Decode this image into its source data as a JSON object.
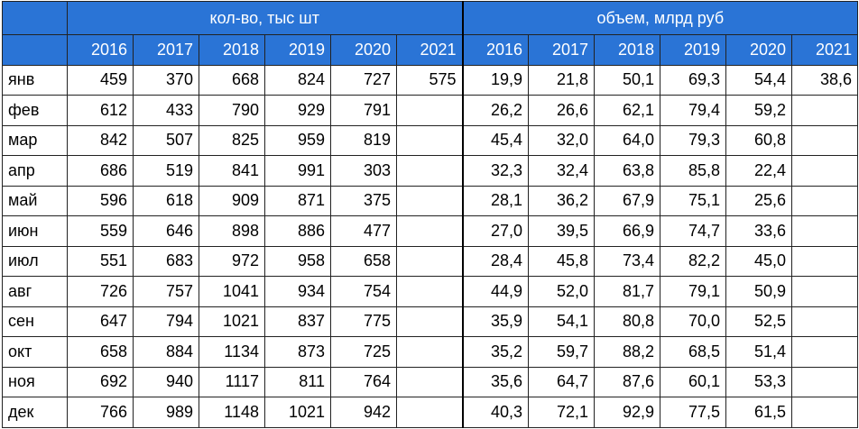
{
  "table": {
    "groups": [
      "кол-во, тыс шт",
      "объем, млрд руб"
    ],
    "columns": [
      "2016",
      "2017",
      "2018",
      "2019",
      "2020",
      "2021",
      "2016",
      "2017",
      "2018",
      "2019",
      "2020",
      "2021"
    ],
    "rows": [
      {
        "month": "янв",
        "values": [
          459,
          370,
          668,
          824,
          727,
          575,
          "19,9",
          "21,8",
          "50,1",
          "69,3",
          "54,4",
          "38,6"
        ]
      },
      {
        "month": "фев",
        "values": [
          612,
          433,
          790,
          929,
          791,
          null,
          "26,2",
          "26,6",
          "62,1",
          "79,4",
          "59,2",
          null
        ]
      },
      {
        "month": "мар",
        "values": [
          842,
          507,
          825,
          959,
          819,
          null,
          "45,4",
          "32,0",
          "64,0",
          "79,3",
          "60,8",
          null
        ]
      },
      {
        "month": "апр",
        "values": [
          686,
          519,
          841,
          991,
          303,
          null,
          "32,3",
          "32,4",
          "63,8",
          "85,8",
          "22,4",
          null
        ]
      },
      {
        "month": "май",
        "values": [
          596,
          618,
          909,
          871,
          375,
          null,
          "28,1",
          "36,2",
          "67,9",
          "75,1",
          "25,6",
          null
        ]
      },
      {
        "month": "июн",
        "values": [
          559,
          646,
          898,
          886,
          477,
          null,
          "27,0",
          "39,5",
          "66,9",
          "74,7",
          "33,6",
          null
        ]
      },
      {
        "month": "июл",
        "values": [
          551,
          683,
          972,
          958,
          658,
          null,
          "28,4",
          "45,8",
          "73,4",
          "82,2",
          "45,0",
          null
        ]
      },
      {
        "month": "авг",
        "values": [
          726,
          757,
          1041,
          934,
          754,
          null,
          "44,9",
          "52,0",
          "81,7",
          "79,1",
          "50,9",
          null
        ]
      },
      {
        "month": "сен",
        "values": [
          647,
          794,
          1021,
          837,
          775,
          null,
          "35,9",
          "54,1",
          "80,8",
          "70,0",
          "52,5",
          null
        ]
      },
      {
        "month": "окт",
        "values": [
          658,
          884,
          1134,
          873,
          725,
          null,
          "35,2",
          "59,7",
          "88,2",
          "68,5",
          "51,4",
          null
        ]
      },
      {
        "month": "ноя",
        "values": [
          692,
          940,
          1117,
          811,
          764,
          null,
          "35,6",
          "64,7",
          "87,6",
          "60,1",
          "53,3",
          null
        ]
      },
      {
        "month": "дек",
        "values": [
          766,
          989,
          1148,
          1021,
          942,
          null,
          "40,3",
          "72,1",
          "92,9",
          "77,5",
          "61,5",
          null
        ]
      }
    ]
  }
}
